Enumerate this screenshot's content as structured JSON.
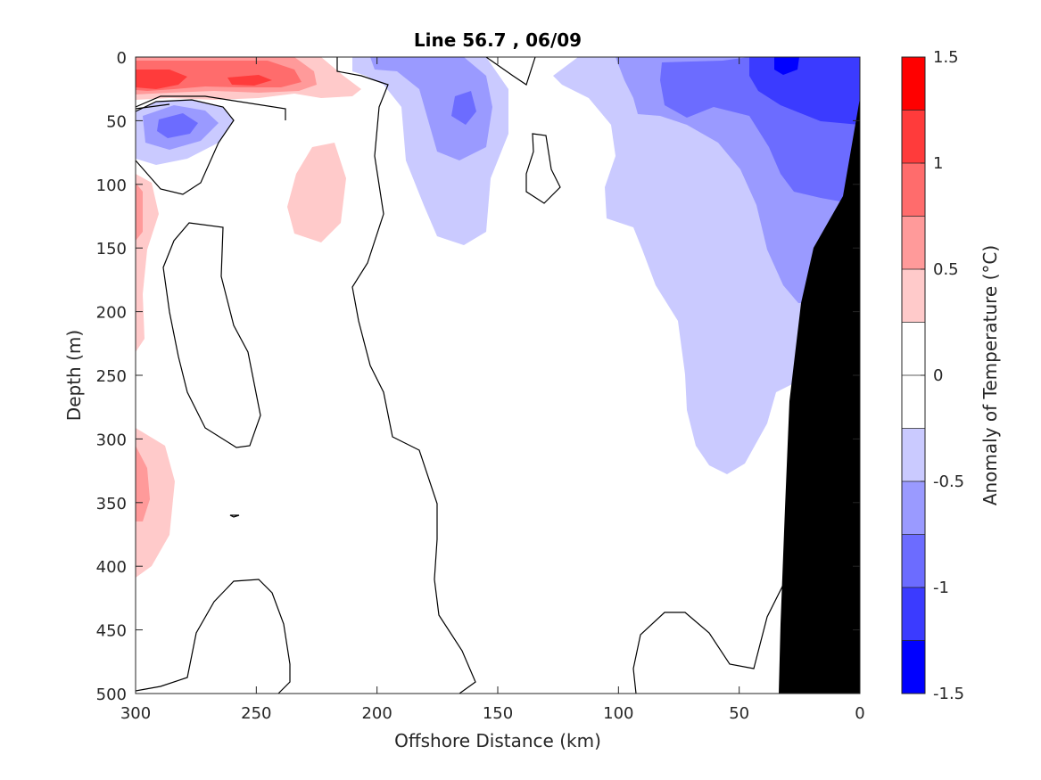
{
  "chart_data": {
    "type": "contour",
    "title": "Line 56.7 , 06/09",
    "xlabel": "Offshore Distance (km)",
    "ylabel": "Depth (m)",
    "xlim": [
      300,
      0
    ],
    "ylim": [
      500,
      0
    ],
    "x_direction": "reversed",
    "y_direction": "reversed (depth increases downward)",
    "x_ticks": [
      "300",
      "250",
      "200",
      "150",
      "100",
      "50",
      "0"
    ],
    "y_ticks": [
      "0",
      "50",
      "100",
      "150",
      "200",
      "250",
      "300",
      "350",
      "400",
      "450",
      "500"
    ],
    "colorbar": {
      "label": "Anomaly of Temperature (°C)",
      "range": [
        -1.5,
        1.5
      ],
      "levels": [
        -1.5,
        -1.25,
        -1.0,
        -0.75,
        -0.5,
        -0.25,
        0,
        0.25,
        0.5,
        0.75,
        1.0,
        1.25,
        1.5
      ],
      "tick_labels": [
        "1.5",
        "1",
        "0.5",
        "0",
        "-0.5",
        "-1",
        "-1.5"
      ],
      "tick_values": [
        1.5,
        1,
        0.5,
        0,
        -0.5,
        -1,
        -1.5
      ],
      "colors_top_to_bottom": [
        "#ff0000",
        "#ff3b3b",
        "#ff6c6c",
        "#ff9a9a",
        "#ffcaca",
        "#ffffff",
        "#ffffff",
        "#cacaff",
        "#9a9aff",
        "#6c6cff",
        "#3b3bff",
        "#0000ff"
      ]
    },
    "features": [
      {
        "name": "warm-surface-core",
        "x_range": [
          300,
          235
        ],
        "depth_range": [
          0,
          35
        ],
        "peak_anomaly": 1.0
      },
      {
        "name": "cool-lens-50m",
        "x_range": [
          300,
          235
        ],
        "depth_range": [
          35,
          90
        ],
        "peak_anomaly": -0.9
      },
      {
        "name": "warm-patch-120m",
        "x_range": [
          225,
          205
        ],
        "depth_range": [
          70,
          145
        ],
        "peak_anomaly": 0.5
      },
      {
        "name": "cool-core-165km",
        "x_range": [
          190,
          140
        ],
        "depth_range": [
          0,
          145
        ],
        "peak_anomaly": -0.9
      },
      {
        "name": "warm-western-edge",
        "x_range": [
          300,
          285
        ],
        "depth_range": [
          95,
          405
        ],
        "peak_anomaly": 0.6
      },
      {
        "name": "cool-nearshore-upwelling",
        "x_range": [
          125,
          0
        ],
        "depth_range": [
          0,
          330
        ],
        "peak_anomaly": -1.4
      }
    ],
    "zero_contour": "black line",
    "bathymetry": {
      "color": "#000000",
      "description": "seafloor at the coast (0 km)"
    }
  }
}
